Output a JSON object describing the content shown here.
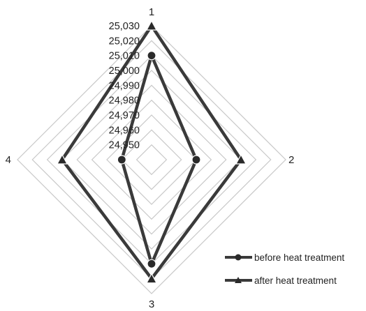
{
  "chart_data": {
    "type": "radar",
    "categories": [
      "1",
      "2",
      "3",
      "4"
    ],
    "r_ticks": [
      "24,950",
      "24,960",
      "24,970",
      "24,980",
      "24,990",
      "25,000",
      "25,010",
      "25,020",
      "25,030"
    ],
    "rlim": [
      24.94,
      25.03
    ],
    "grid": true,
    "legend_position": "bottom-right",
    "series": [
      {
        "name": "before heat treatment",
        "marker": "circle",
        "color": "#3a3a3a",
        "values": [
          25.01,
          24.97,
          25.01,
          24.96
        ]
      },
      {
        "name": "after heat treatment",
        "marker": "triangle",
        "color": "#3a3a3a",
        "values": [
          25.03,
          25.0,
          25.02,
          25.0
        ]
      }
    ]
  }
}
